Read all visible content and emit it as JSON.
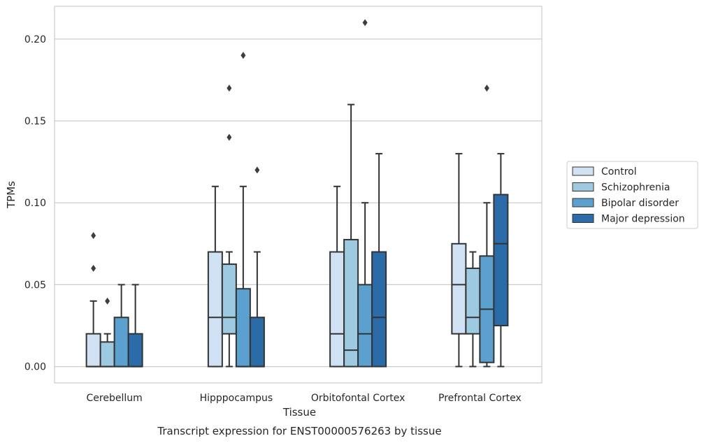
{
  "chart_data": {
    "type": "box",
    "xlabel": "Tissue",
    "ylabel": "TPMs",
    "caption": "Transcript expression for ENST00000576263 by tissue",
    "ylim": [
      -0.01,
      0.22
    ],
    "yticks": [
      0.0,
      0.05,
      0.1,
      0.15,
      0.2
    ],
    "ytick_labels": [
      "0.00",
      "0.05",
      "0.10",
      "0.15",
      "0.20"
    ],
    "grid": "horizontal",
    "legend_position": "right",
    "categories": [
      "Cerebellum",
      "Hipppocampus",
      "Orbitofontal Cortex",
      "Prefrontal Cortex"
    ],
    "series": [
      {
        "name": "Control",
        "color": "#cfe1f2",
        "boxes": [
          {
            "whislo": 0.0,
            "q1": 0.0,
            "med": 0.0,
            "q3": 0.02,
            "whishi": 0.04,
            "fliers": [
              0.06,
              0.08
            ]
          },
          {
            "whislo": 0.0,
            "q1": 0.0,
            "med": 0.03,
            "q3": 0.07,
            "whishi": 0.11,
            "fliers": []
          },
          {
            "whislo": 0.0,
            "q1": 0.0,
            "med": 0.02,
            "q3": 0.07,
            "whishi": 0.11,
            "fliers": []
          },
          {
            "whislo": 0.0,
            "q1": 0.02,
            "med": 0.05,
            "q3": 0.075,
            "whishi": 0.13,
            "fliers": []
          }
        ]
      },
      {
        "name": "Schizophrenia",
        "color": "#9ecae1",
        "boxes": [
          {
            "whislo": 0.0,
            "q1": 0.0,
            "med": 0.0,
            "q3": 0.015,
            "whishi": 0.02,
            "fliers": [
              0.04
            ]
          },
          {
            "whislo": 0.0,
            "q1": 0.02,
            "med": 0.03,
            "q3": 0.0625,
            "whishi": 0.07,
            "fliers": [
              0.14,
              0.17
            ]
          },
          {
            "whislo": 0.0,
            "q1": 0.0,
            "med": 0.01,
            "q3": 0.0775,
            "whishi": 0.16,
            "fliers": []
          },
          {
            "whislo": 0.0,
            "q1": 0.02,
            "med": 0.03,
            "q3": 0.06,
            "whishi": 0.07,
            "fliers": []
          }
        ]
      },
      {
        "name": "Bipolar disorder",
        "color": "#5ba0cf",
        "boxes": [
          {
            "whislo": 0.0,
            "q1": 0.0,
            "med": 0.0,
            "q3": 0.03,
            "whishi": 0.05,
            "fliers": []
          },
          {
            "whislo": 0.0,
            "q1": 0.0,
            "med": 0.0,
            "q3": 0.0475,
            "whishi": 0.11,
            "fliers": [
              0.19
            ]
          },
          {
            "whislo": 0.0,
            "q1": 0.0,
            "med": 0.02,
            "q3": 0.05,
            "whishi": 0.1,
            "fliers": [
              0.21
            ]
          },
          {
            "whislo": 0.0,
            "q1": 0.0025,
            "med": 0.035,
            "q3": 0.0675,
            "whishi": 0.1,
            "fliers": [
              0.17
            ]
          }
        ]
      },
      {
        "name": "Major depression",
        "color": "#2a6ba8",
        "boxes": [
          {
            "whislo": 0.0,
            "q1": 0.0,
            "med": 0.0,
            "q3": 0.02,
            "whishi": 0.05,
            "fliers": []
          },
          {
            "whislo": 0.0,
            "q1": 0.0,
            "med": 0.0,
            "q3": 0.03,
            "whishi": 0.07,
            "fliers": [
              0.12
            ]
          },
          {
            "whislo": 0.0,
            "q1": 0.0,
            "med": 0.03,
            "q3": 0.07,
            "whishi": 0.13,
            "fliers": []
          },
          {
            "whislo": 0.0,
            "q1": 0.025,
            "med": 0.075,
            "q3": 0.105,
            "whishi": 0.13,
            "fliers": []
          }
        ]
      }
    ]
  }
}
